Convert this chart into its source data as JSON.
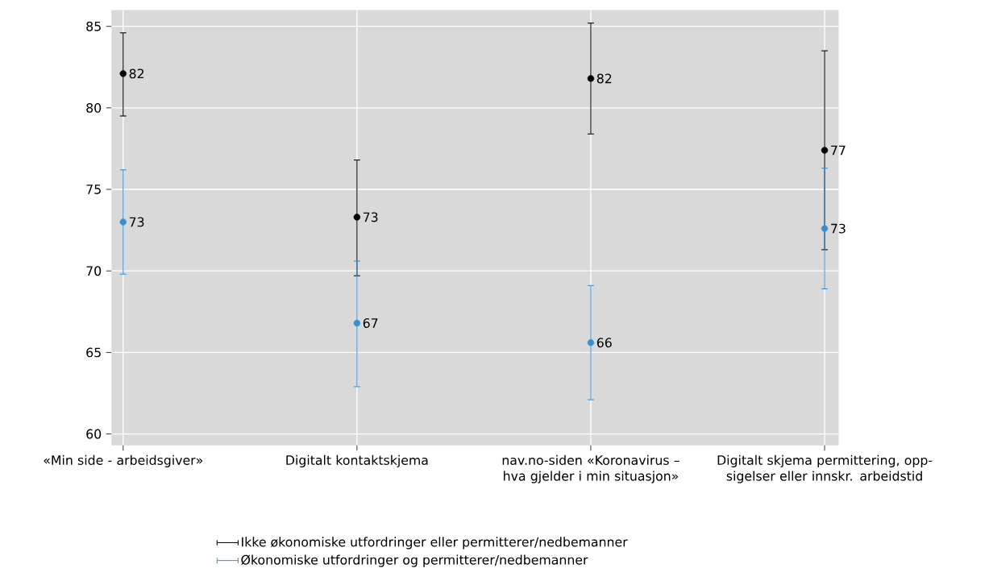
{
  "chart_data": {
    "type": "scatter",
    "categories": [
      "«Min side - arbeidsgiver»",
      "Digitalt kontaktskjema",
      "nav.no-siden «Koronavirus – hva gjelder i min situasjon»",
      "Digitalt skjema permittering, opp-sigelser eller innskr. arbeidstid"
    ],
    "series": [
      {
        "name": "Ikke økonomiske utfordringer eller permitterer/nedbemanner",
        "color": "#000000",
        "values": [
          82.1,
          73.3,
          81.8,
          77.4
        ],
        "errors": [
          [
            79.5,
            84.6
          ],
          [
            69.7,
            76.8
          ],
          [
            78.4,
            85.2
          ],
          [
            71.3,
            83.5
          ]
        ],
        "value_labels": [
          "82",
          "73",
          "82",
          "77"
        ]
      },
      {
        "name": "Økonomiske utfordringer og permitterer/nedbemanner",
        "color": "#3a8fd0",
        "values": [
          73.0,
          66.8,
          65.6,
          72.6
        ],
        "errors": [
          [
            69.8,
            76.2
          ],
          [
            62.9,
            70.6
          ],
          [
            62.1,
            69.1
          ],
          [
            68.9,
            76.3
          ]
        ],
        "value_labels": [
          "73",
          "67",
          "66",
          "73"
        ]
      }
    ],
    "ylim": [
      59.3,
      86
    ],
    "yticks": [
      60,
      65,
      70,
      75,
      80,
      85
    ],
    "grid": true,
    "legend": "bottom",
    "marker": "circle"
  }
}
